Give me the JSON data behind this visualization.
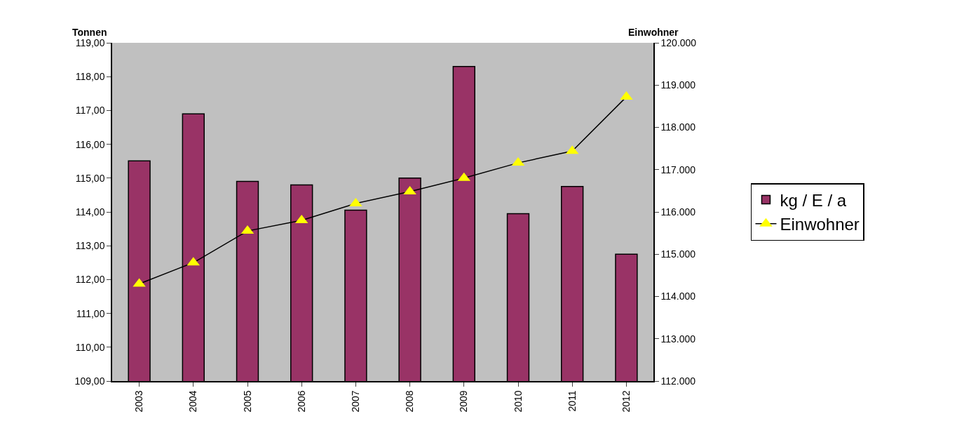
{
  "chart_data": {
    "type": "bar",
    "ylabel": "Tonnen",
    "y2label": "Einwohner",
    "categories": [
      "2003",
      "2004",
      "2005",
      "2006",
      "2007",
      "2008",
      "2009",
      "2010",
      "2011",
      "2012"
    ],
    "series": [
      {
        "name": "kg / E / a",
        "color": "#993366",
        "values": [
          115.51,
          116.9,
          114.9,
          114.8,
          114.05,
          115.0,
          118.3,
          113.95,
          114.75,
          112.75
        ]
      },
      {
        "name": "Einwohner",
        "type": "line",
        "axis": "y2",
        "color": "#ffff00",
        "marker": "triangle",
        "values": [
          114300,
          114800,
          115550,
          115800,
          116200,
          116480,
          116800,
          117160,
          117440,
          118720
        ]
      }
    ],
    "ylim": [
      109,
      119
    ],
    "yticks": [
      {
        "value": 109,
        "label": "109,00"
      },
      {
        "value": 110,
        "label": "110,00"
      },
      {
        "value": 111,
        "label": "111,00"
      },
      {
        "value": 112,
        "label": "112,00"
      },
      {
        "value": 113,
        "label": "113,00"
      },
      {
        "value": 114,
        "label": "114,00"
      },
      {
        "value": 115,
        "label": "115,00"
      },
      {
        "value": 116,
        "label": "116,00"
      },
      {
        "value": 117,
        "label": "117,00"
      },
      {
        "value": 118,
        "label": "118,00"
      },
      {
        "value": 119,
        "label": "119,00"
      }
    ],
    "y2lim": [
      112000,
      120000
    ],
    "y2ticks": [
      {
        "value": 112000,
        "label": "112.000"
      },
      {
        "value": 113000,
        "label": "113.000"
      },
      {
        "value": 114000,
        "label": "114.000"
      },
      {
        "value": 115000,
        "label": "115.000"
      },
      {
        "value": 116000,
        "label": "116.000"
      },
      {
        "value": 117000,
        "label": "117.000"
      },
      {
        "value": 118000,
        "label": "118.000"
      },
      {
        "value": 119000,
        "label": "119.000"
      },
      {
        "value": 120000,
        "label": "120.000"
      }
    ],
    "grid": false,
    "legend": "right"
  }
}
